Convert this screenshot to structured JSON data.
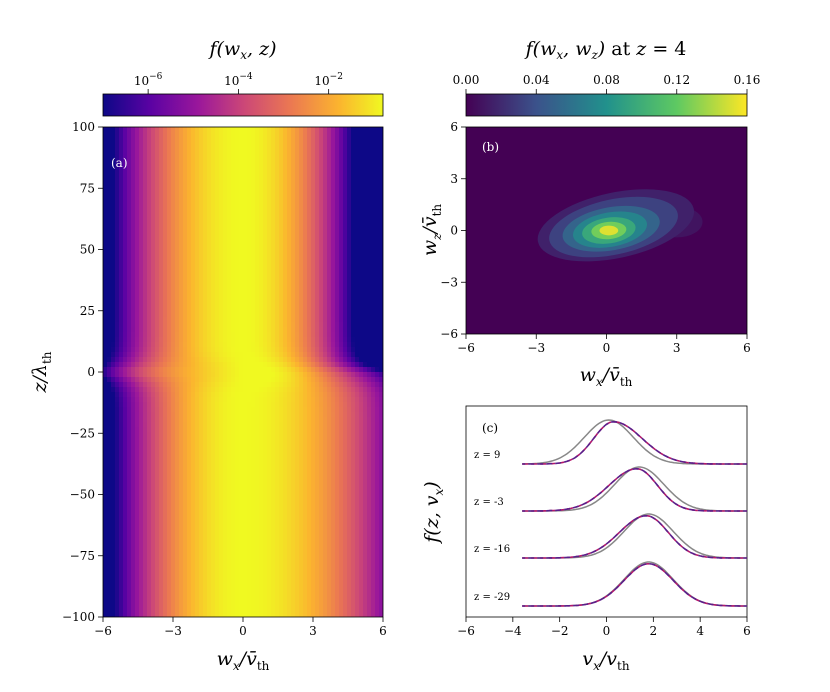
{
  "colors": {
    "plasma": [
      "#0d0887",
      "#5b02a3",
      "#9a179b",
      "#cb4678",
      "#eb7852",
      "#fbb32f",
      "#f0f921"
    ],
    "viridis": [
      "#440154",
      "#3b528b",
      "#21918c",
      "#5ec962",
      "#fde725"
    ],
    "solid_curve": "#888888",
    "dashed_curve": "#5a1f8a",
    "dashed_overlay": "#b3186b"
  },
  "panel_a": {
    "label": "(a)",
    "colorbar_title": "f(w_x, z)",
    "colorbar_ticks": [
      {
        "base": "10",
        "exp": "−6",
        "value": 1e-06
      },
      {
        "base": "10",
        "exp": "−4",
        "value": 0.0001
      },
      {
        "base": "10",
        "exp": "−2",
        "value": 0.01
      }
    ],
    "xlabel_main": "w",
    "xlabel_sub": "x",
    "xlabel_rest": "/v̄",
    "xlabel_sub2": "th",
    "ylabel_main": "z/λ",
    "ylabel_sub": "th",
    "xticks": [
      "−6",
      "−3",
      "0",
      "3",
      "6"
    ],
    "yticks": [
      "100",
      "75",
      "50",
      "25",
      "0",
      "−25",
      "−50",
      "−75",
      "−100"
    ]
  },
  "panel_b": {
    "label": "(b)",
    "colorbar_title": "f(w_x, w_z) at z = 4",
    "colorbar_ticks": [
      "0.00",
      "0.04",
      "0.08",
      "0.12",
      "0.16"
    ],
    "xlabel_main": "w",
    "xlabel_sub": "x",
    "xlabel_rest": "/v̄",
    "xlabel_sub2": "th",
    "ylabel_main": "w",
    "ylabel_sub": "z",
    "ylabel_rest": "/v̄",
    "ylabel_sub2": "th",
    "xticks": [
      "−6",
      "−3",
      "0",
      "3",
      "6"
    ],
    "yticks": [
      "6",
      "3",
      "0",
      "−3",
      "−6"
    ]
  },
  "panel_c": {
    "label": "(c)",
    "ylabel": "f(z, v_x)",
    "xlabel_main": "v",
    "xlabel_sub": "x",
    "xlabel_rest": "/v",
    "xlabel_sub2": "th",
    "xticks": [
      "−6",
      "−4",
      "−2",
      "0",
      "2",
      "4",
      "6"
    ],
    "curve_labels": [
      "z = 9",
      "z = -3",
      "z = -16",
      "z = -29"
    ]
  },
  "chart_data": [
    {
      "type": "heatmap",
      "panel": "a",
      "colormap": "plasma",
      "color_scale": "log",
      "x_range": [
        -6,
        6
      ],
      "y_range": [
        -100,
        100
      ],
      "color_range": [
        1e-07,
        0.16
      ],
      "note_values": "Column-wise profile near y=0: shifted toward negative w_x above z=0 and positive w_x below z=0",
      "series": [
        {
          "name": "z = 75",
          "w_x": [
            -6,
            -4,
            -2,
            0,
            2,
            4,
            6
          ],
          "log10_f": [
            -7,
            -4.6,
            -2.0,
            -0.8,
            -1.6,
            -3.4,
            -5.5
          ]
        },
        {
          "name": "z = 0",
          "w_x": [
            -6,
            -4,
            -2,
            0,
            2,
            4,
            6
          ],
          "log10_f": [
            -5.8,
            -3.8,
            -1.8,
            -0.8,
            -1.8,
            -3.8,
            -5.8
          ]
        },
        {
          "name": "z = -75",
          "w_x": [
            -6,
            -4,
            -2,
            0,
            2,
            4,
            6
          ],
          "log10_f": [
            -5.5,
            -3.4,
            -1.6,
            -0.8,
            -2.0,
            -4.6,
            -7
          ]
        }
      ]
    },
    {
      "type": "heatmap",
      "panel": "b",
      "colormap": "viridis",
      "x_range": [
        -6,
        6
      ],
      "y_range": [
        -6,
        6
      ],
      "color_range": [
        0,
        0.16
      ],
      "peak": {
        "w_x": 0.1,
        "w_z": 0,
        "value": 0.16
      },
      "shoulder": {
        "w_x": 3.2,
        "w_z": 0.6
      }
    },
    {
      "type": "line",
      "panel": "c",
      "x_range": [
        -6,
        6
      ],
      "x_data_extent": [
        -3.6,
        6
      ],
      "curves": [
        {
          "z": 9,
          "solid_peak": 0.1,
          "dashed_peak": 0.3,
          "dashed_skew": 0.35
        },
        {
          "z": -3,
          "solid_peak": 1.4,
          "dashed_peak": 1.3,
          "dashed_skew": -0.3
        },
        {
          "z": -16,
          "solid_peak": 1.8,
          "dashed_peak": 1.7,
          "dashed_skew": -0.2
        },
        {
          "z": -29,
          "solid_peak": 1.8,
          "dashed_peak": 1.8,
          "dashed_skew": 0.0
        }
      ]
    }
  ]
}
